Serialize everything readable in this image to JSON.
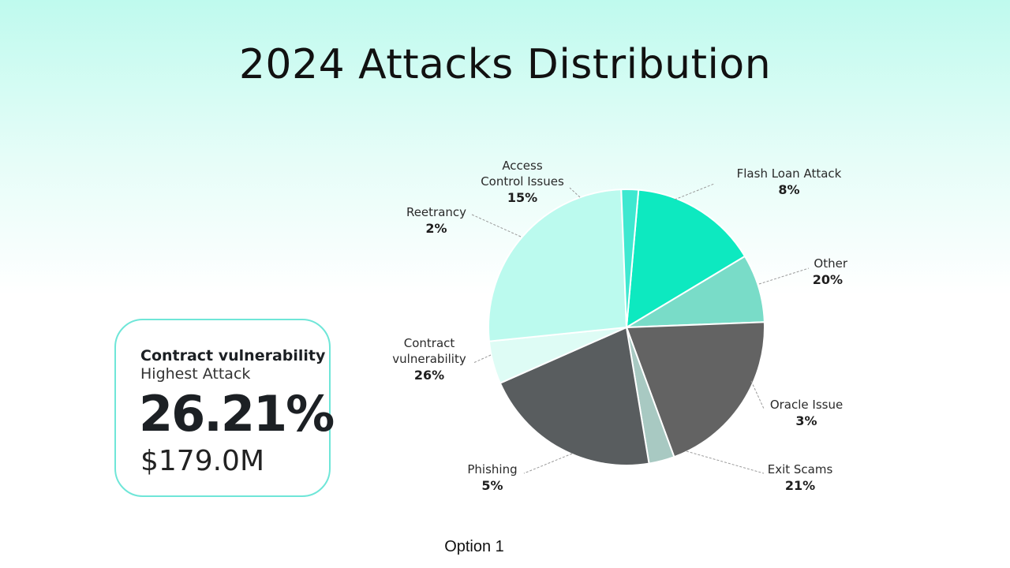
{
  "title": "2024 Attacks Distribution",
  "card": {
    "heading": "Contract vulnerability",
    "subheading": "Highest Attack",
    "value": "26.21%",
    "amount": "$179.0M"
  },
  "footer": "Option 1",
  "chart_data": {
    "type": "pie",
    "title": "2024 Attacks Distribution",
    "legend": "none",
    "slices": [
      {
        "label": [
          "Access",
          "Control Issues"
        ],
        "value_label": "15%",
        "value": 15,
        "color": "#0de9c0"
      },
      {
        "label": [
          "Flash Loan Attack"
        ],
        "value_label": "8%",
        "value": 8,
        "color": "#79dcc8"
      },
      {
        "label": [
          "Other"
        ],
        "value_label": "20%",
        "value": 20,
        "color": "#636363"
      },
      {
        "label": [
          "Oracle Issue"
        ],
        "value_label": "3%",
        "value": 3,
        "color": "#a8c9c2"
      },
      {
        "label": [
          "Exit Scams"
        ],
        "value_label": "21%",
        "value": 21,
        "color": "#595d5f"
      },
      {
        "label": [
          "Phishing"
        ],
        "value_label": "5%",
        "value": 5,
        "color": "#defcf5"
      },
      {
        "label": [
          "Contract",
          "vulnerability"
        ],
        "value_label": "26%",
        "value": 26,
        "color": "#bbfaee"
      },
      {
        "label": [
          "Reetrancy"
        ],
        "value_label": "2%",
        "value": 2,
        "color": "#3ee8d0"
      }
    ]
  }
}
